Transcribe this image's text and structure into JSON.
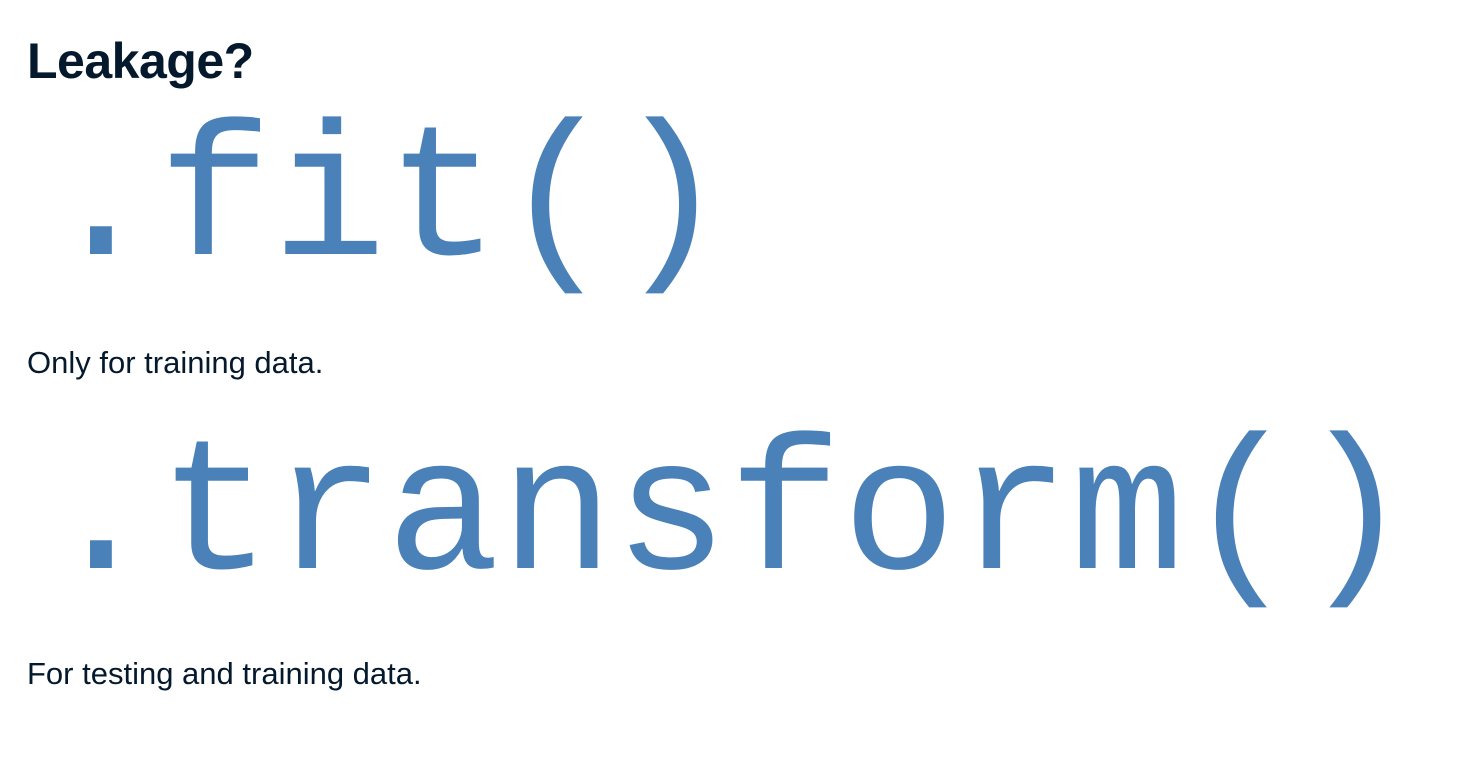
{
  "slide": {
    "title": "Leakage?",
    "methods": [
      {
        "name": ".fit()",
        "description": "Only for training data."
      },
      {
        "name": ".transform()",
        "description": "For testing and training data."
      }
    ]
  },
  "colors": {
    "heading_text": "#05192d",
    "code_text": "#4a81b8",
    "background": "#ffffff"
  }
}
